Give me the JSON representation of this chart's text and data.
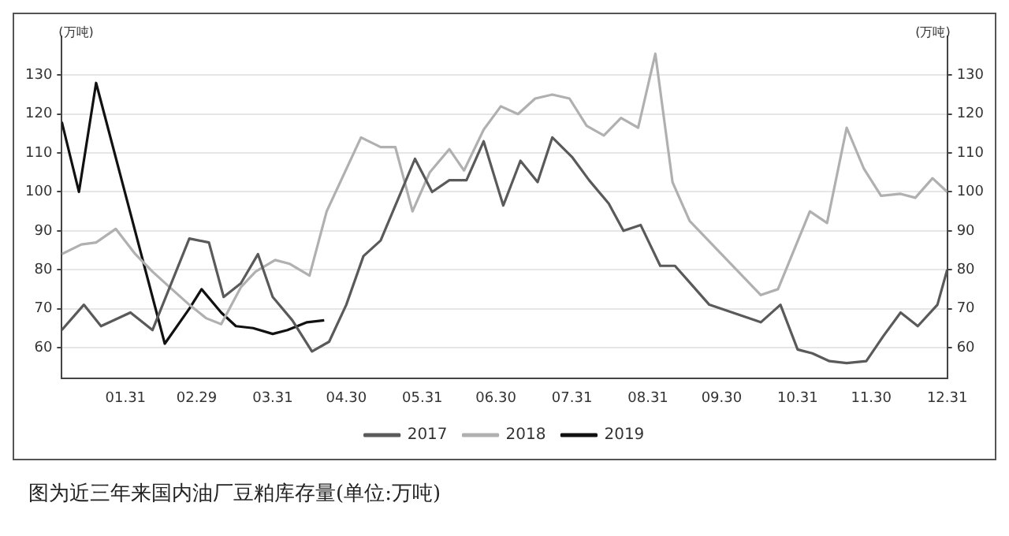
{
  "chart_data": {
    "type": "line",
    "ylabel": "(万吨)",
    "y2label": "(万吨)",
    "annotations": [
      "图为近三年来国内油厂豆粕库存量(单位:万吨)"
    ],
    "xlim": [
      "--01-05",
      "--12-31"
    ],
    "xticks": [
      {
        "value": "--01-31",
        "label": "01.31"
      },
      {
        "value": "--02-29",
        "label": "02.29"
      },
      {
        "value": "--03-31",
        "label": "03.31"
      },
      {
        "value": "--04-30",
        "label": "04.30"
      },
      {
        "value": "--05-31",
        "label": "05.31"
      },
      {
        "value": "--06-30",
        "label": "06.30"
      },
      {
        "value": "--07-31",
        "label": "07.31"
      },
      {
        "value": "--08-31",
        "label": "08.31"
      },
      {
        "value": "--09-30",
        "label": "09.30"
      },
      {
        "value": "--10-31",
        "label": "10.31"
      },
      {
        "value": "--11-30",
        "label": "11.30"
      },
      {
        "value": "--12-31",
        "label": "12.31"
      }
    ],
    "ylim": [
      52,
      140
    ],
    "yticks": [
      60,
      70,
      80,
      90,
      100,
      110,
      120,
      130
    ],
    "y2lim": [
      52,
      140
    ],
    "y2ticks": [
      60,
      70,
      80,
      90,
      100,
      110,
      120,
      130
    ],
    "grid": "y",
    "legend": "bottom",
    "marker": "none",
    "line_style": "solid",
    "series": [
      {
        "name": "2017",
        "color": "#5a5a5a",
        "x": [
          "--01-05",
          "--01-14",
          "--01-21",
          "--02-02",
          "--02-11",
          "--02-26",
          "--03-05",
          "--03-11",
          "--03-18",
          "--03-25",
          "--03-31",
          "--04-08",
          "--04-16",
          "--04-23",
          "--04-30",
          "--05-07",
          "--05-14",
          "--05-21",
          "--05-28",
          "--06-04",
          "--06-11",
          "--06-18",
          "--06-25",
          "--07-03",
          "--07-10",
          "--07-17",
          "--07-23",
          "--07-31",
          "--08-07",
          "--08-15",
          "--08-21",
          "--08-28",
          "--09-05",
          "--09-11",
          "--09-18",
          "--09-25",
          "--10-16",
          "--10-24",
          "--10-31",
          "--11-06",
          "--11-13",
          "--11-20",
          "--11-28",
          "--12-05",
          "--12-12",
          "--12-19",
          "--12-27",
          "--12-31"
        ],
        "values": [
          64.5,
          71,
          65.5,
          69,
          64.5,
          88,
          87,
          73,
          76.5,
          84,
          73,
          67,
          59,
          61.5,
          71,
          83.5,
          87.5,
          98,
          108.5,
          100,
          103,
          103,
          113,
          96.5,
          108,
          102.5,
          114,
          109,
          103,
          97,
          90,
          91.5,
          81,
          81,
          76,
          71,
          66.5,
          71,
          59.5,
          58.5,
          56.5,
          56,
          56.5,
          63,
          69,
          65.5,
          71,
          80
        ]
      },
      {
        "name": "2018",
        "color": "#b0b0b0",
        "x": [
          "--01-05",
          "--01-13",
          "--01-19",
          "--01-27",
          "--02-04",
          "--02-11",
          "--02-18",
          "--02-26",
          "--03-04",
          "--03-10",
          "--03-18",
          "--03-24",
          "--04-01",
          "--04-07",
          "--04-15",
          "--04-22",
          "--05-06",
          "--05-14",
          "--05-20",
          "--05-27",
          "--06-03",
          "--06-11",
          "--06-17",
          "--06-25",
          "--07-02",
          "--07-09",
          "--07-16",
          "--07-23",
          "--07-30",
          "--08-06",
          "--08-13",
          "--08-20",
          "--08-27",
          "--09-03",
          "--09-10",
          "--09-17",
          "--10-16",
          "--10-23",
          "--11-05",
          "--11-12",
          "--11-20",
          "--11-27",
          "--12-04",
          "--12-12",
          "--12-18",
          "--12-25",
          "--12-31"
        ],
        "values": [
          84,
          86.5,
          87,
          90.5,
          84,
          79.5,
          75.5,
          71,
          67.5,
          66,
          75.5,
          79.5,
          82.5,
          81.5,
          78.5,
          95,
          114,
          111.5,
          111.5,
          95,
          105,
          111,
          105.5,
          116,
          122,
          120,
          124,
          125,
          124,
          117,
          114.5,
          119,
          116.5,
          135.5,
          102.5,
          92.5,
          73.5,
          75,
          95,
          92,
          116.5,
          106,
          99,
          99.5,
          98.5,
          103.5,
          100
        ]
      },
      {
        "name": "2019",
        "color": "#111111",
        "x": [
          "--01-05",
          "--01-12",
          "--01-19",
          "--02-16",
          "--02-26",
          "--03-02",
          "--03-10",
          "--03-16",
          "--03-23",
          "--03-31",
          "--04-06",
          "--04-14",
          "--04-21"
        ],
        "values": [
          118,
          100,
          128,
          61,
          70,
          75,
          69,
          65.5,
          65,
          63.5,
          64.5,
          66.5,
          67
        ]
      }
    ]
  }
}
